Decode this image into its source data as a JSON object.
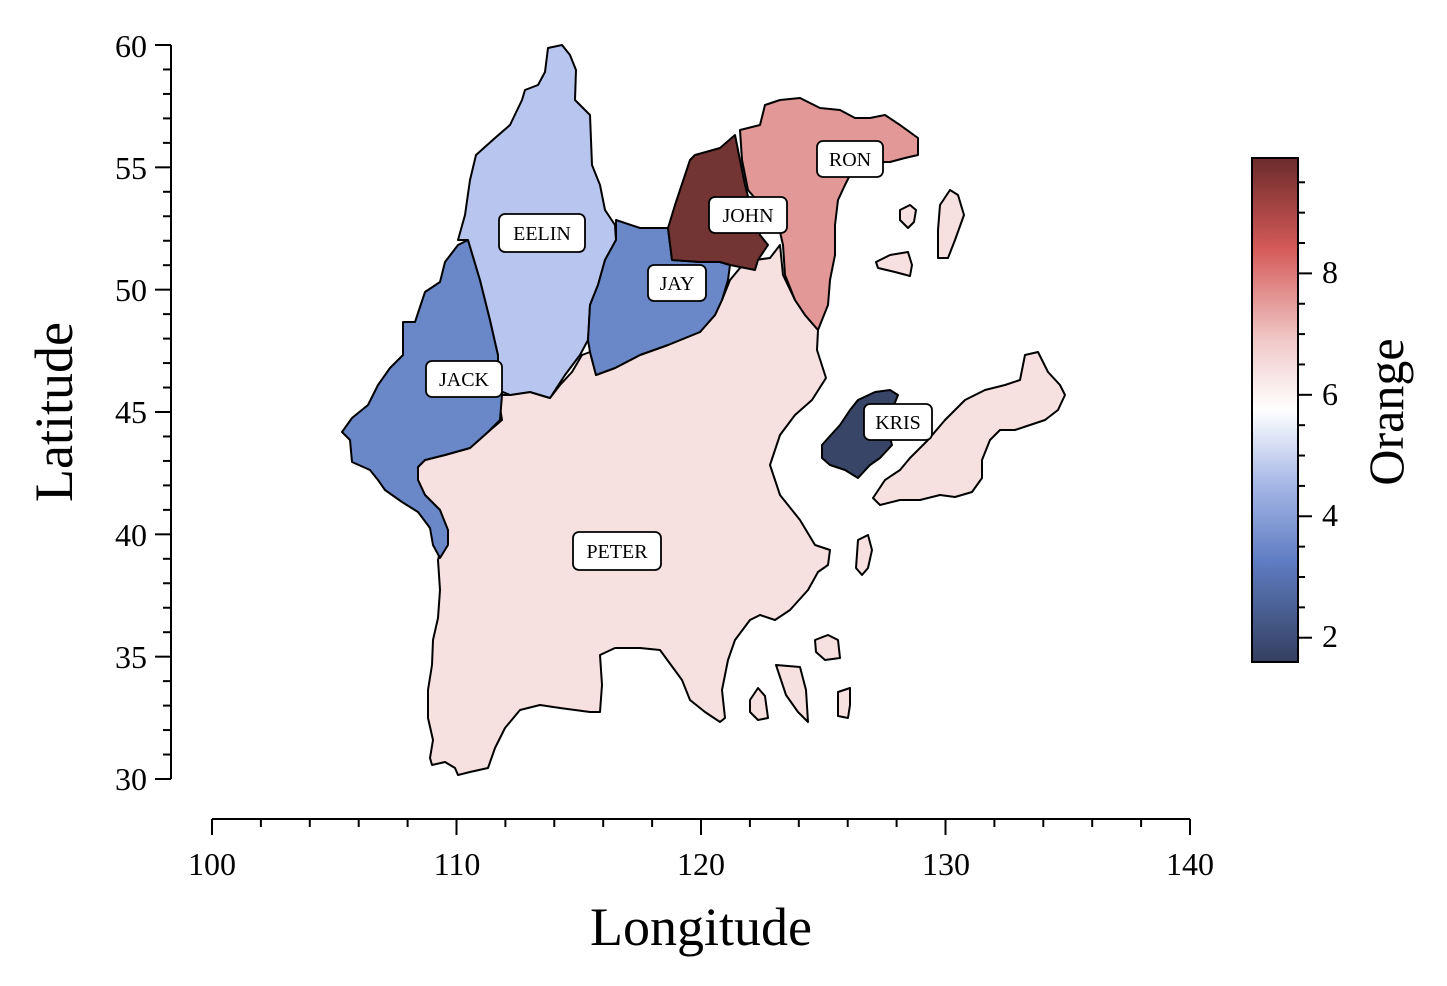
{
  "chart_data": {
    "type": "choropleth-map",
    "xlabel": "Longitude",
    "ylabel": "Latitude",
    "xlim": [
      100,
      140
    ],
    "ylim": [
      30,
      60
    ],
    "x_ticks": [
      "100",
      "110",
      "120",
      "130",
      "140"
    ],
    "y_ticks": [
      "30",
      "35",
      "40",
      "45",
      "50",
      "55",
      "60"
    ],
    "colorbar": {
      "label": "Orange",
      "range": [
        1.6,
        9.9
      ],
      "ticks": [
        "2",
        "4",
        "6",
        "8"
      ],
      "colormap": "diverging blue-white-red",
      "colors": {
        "low": "#3b4565",
        "mid_low": "#6c89c8",
        "light_blue": "#b8c5ec",
        "mid": "#ffffff",
        "light_red": "#e9b3b1",
        "high_mid": "#d45a58",
        "high": "#6b2b2b"
      }
    },
    "regions": [
      {
        "name": "EELIN",
        "value": 4.0,
        "color": "#b8c5ee"
      },
      {
        "name": "JACK",
        "value": 2.9,
        "color": "#6a87c8"
      },
      {
        "name": "JAY",
        "value": 2.9,
        "color": "#6a87c8"
      },
      {
        "name": "JOHN",
        "value": 9.8,
        "color": "#733434"
      },
      {
        "name": "RON",
        "value": 7.8,
        "color": "#e29896"
      },
      {
        "name": "PETER",
        "value": 6.4,
        "color": "#f7e0e0"
      },
      {
        "name": "KRIS",
        "value": 1.8,
        "color": "#394567"
      }
    ],
    "legend": "colorbar-right",
    "grid": false
  }
}
